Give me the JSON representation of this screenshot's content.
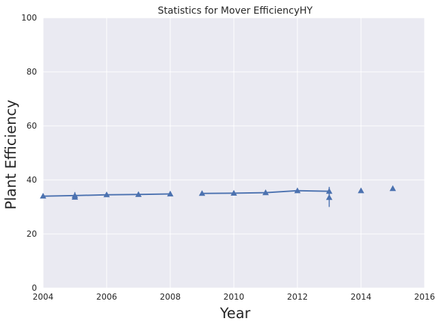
{
  "chart_data": {
    "type": "line",
    "title": "Statistics for Mover EfficiencyHY",
    "xlabel": "Year",
    "ylabel": "Plant Efficiency",
    "xlim": [
      2004,
      2016
    ],
    "ylim": [
      0,
      100
    ],
    "xticks": [
      2004,
      2006,
      2008,
      2010,
      2012,
      2014,
      2016
    ],
    "yticks": [
      0,
      20,
      40,
      60,
      80,
      100
    ],
    "xtick_labels": [
      "2004",
      "2006",
      "2008",
      "2010",
      "2012",
      "2014",
      "2016"
    ],
    "ytick_labels": [
      "0",
      "20",
      "40",
      "60",
      "80",
      "100"
    ],
    "grid": true,
    "colors": {
      "series": "#4c72b0",
      "background": "#eaeaf2",
      "grid": "#ffffff"
    },
    "series": [
      {
        "marker": "triangle",
        "line_segments": [
          [
            [
              2004,
              34.0
            ],
            [
              2005,
              34.2
            ],
            [
              2006,
              34.5
            ],
            [
              2007,
              34.6
            ],
            [
              2008,
              34.8
            ]
          ],
          [
            [
              2009,
              35.0
            ],
            [
              2010,
              35.1
            ],
            [
              2011,
              35.3
            ],
            [
              2012,
              36.0
            ],
            [
              2013,
              35.8
            ]
          ]
        ],
        "points": [
          {
            "x": 2004,
            "y": 34.0,
            "err": 0.8
          },
          {
            "x": 2005,
            "y": 34.2,
            "err": 1.3
          },
          {
            "x": 2005,
            "y": 33.6,
            "err": 0
          },
          {
            "x": 2006,
            "y": 34.5,
            "err": 0.6
          },
          {
            "x": 2007,
            "y": 34.6,
            "err": 0.6
          },
          {
            "x": 2008,
            "y": 34.8,
            "err": 0.5
          },
          {
            "x": 2009,
            "y": 35.0,
            "err": 0.5
          },
          {
            "x": 2010,
            "y": 35.1,
            "err": 0.6
          },
          {
            "x": 2011,
            "y": 35.3,
            "err": 0.5
          },
          {
            "x": 2012,
            "y": 36.0,
            "err": 0.5
          },
          {
            "x": 2013,
            "y": 35.8,
            "err": 1.6
          },
          {
            "x": 2013,
            "y": 33.5,
            "err": 3.5
          },
          {
            "x": 2014,
            "y": 36.0,
            "err": 0.6
          },
          {
            "x": 2015,
            "y": 36.8,
            "err": 0.5
          }
        ]
      }
    ]
  }
}
